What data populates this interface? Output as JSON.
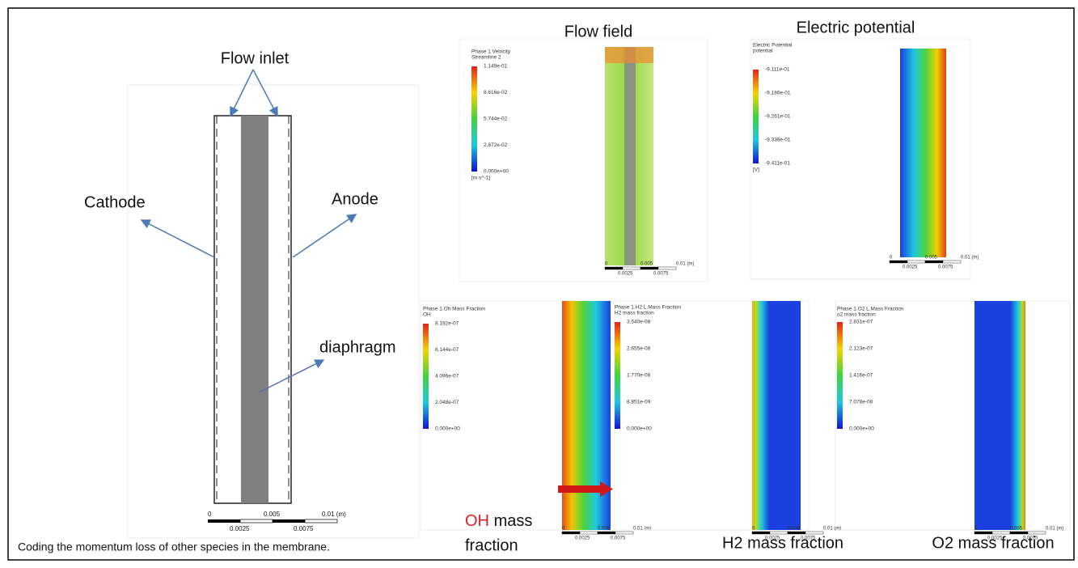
{
  "schematic": {
    "labels": {
      "flow_inlet": "Flow inlet",
      "cathode": "Cathode",
      "anode": "Anode",
      "diaphragm": "diaphragm"
    },
    "scale": {
      "major": [
        "0",
        "0.005",
        "0.01 (m)"
      ],
      "minor": [
        "0.0025",
        "0.0075"
      ]
    }
  },
  "caption": "Coding the momentum loss of other species in the membrane.",
  "panels": [
    {
      "title": "Flow field",
      "legend_title": [
        "Phase 1.Velocity",
        "Streamline 2"
      ],
      "legend_values": [
        "1.149e-01",
        "8.616e-02",
        "5.744e-02",
        "2.872e-02",
        "0.000e+00"
      ],
      "unit": "[m s^-1]",
      "scale": {
        "major": [
          "0",
          "0.005",
          "0.01 (m)"
        ],
        "minor": [
          "0.0025",
          "0.0075"
        ]
      }
    },
    {
      "title": "Electric potential",
      "legend_title": [
        "Electric Potential",
        "potential"
      ],
      "legend_values": [
        "-9.111e-01",
        "-9.186e-01",
        "-9.261e-01",
        "-9.336e-01",
        "-9.411e-01"
      ],
      "unit": "[V]",
      "scale": {
        "major": [
          "0",
          "0.005",
          "0.01 (m)"
        ],
        "minor": [
          "0.0025",
          "0.0075"
        ]
      }
    },
    {
      "title_highlight": "OH",
      "title_lines": [
        "mass",
        "fraction"
      ],
      "legend_title": [
        "Phase 1.Oh Mass Fraction",
        "OH"
      ],
      "legend_values": [
        "8.192e-07",
        "6.144e-07",
        "4.096e-07",
        "2.048e-07",
        "0.000e+00"
      ],
      "scale": {
        "major": [
          "0",
          "0.005",
          "0.01 (m)"
        ],
        "minor": [
          "0.0025",
          "0.0075"
        ]
      }
    },
    {
      "title": "H2 mass fraction",
      "legend_title": [
        "Phase 1.H2 L.Mass Fraction",
        "H2 mass fraction"
      ],
      "legend_values": [
        "3.540e-08",
        "2.655e-08",
        "1.770e-08",
        "8.851e-09",
        "0.000e+00"
      ],
      "scale": {
        "major": [
          "0",
          "0.005",
          "0.01 (m)"
        ],
        "minor": [
          "0.0025",
          "0.0075"
        ]
      }
    },
    {
      "title": "O2 mass fraction",
      "legend_title": [
        "Phase 1.O2 L.Mass Fraction",
        "o2 mass fraction"
      ],
      "legend_values": [
        "2.831e-07",
        "2.123e-07",
        "1.416e-07",
        "7.078e-08",
        "0.000e+00"
      ],
      "scale": {
        "major": [
          "0",
          "0.005",
          "0.01 (m)"
        ],
        "minor": [
          "0.0025",
          "0.0075"
        ]
      }
    }
  ]
}
